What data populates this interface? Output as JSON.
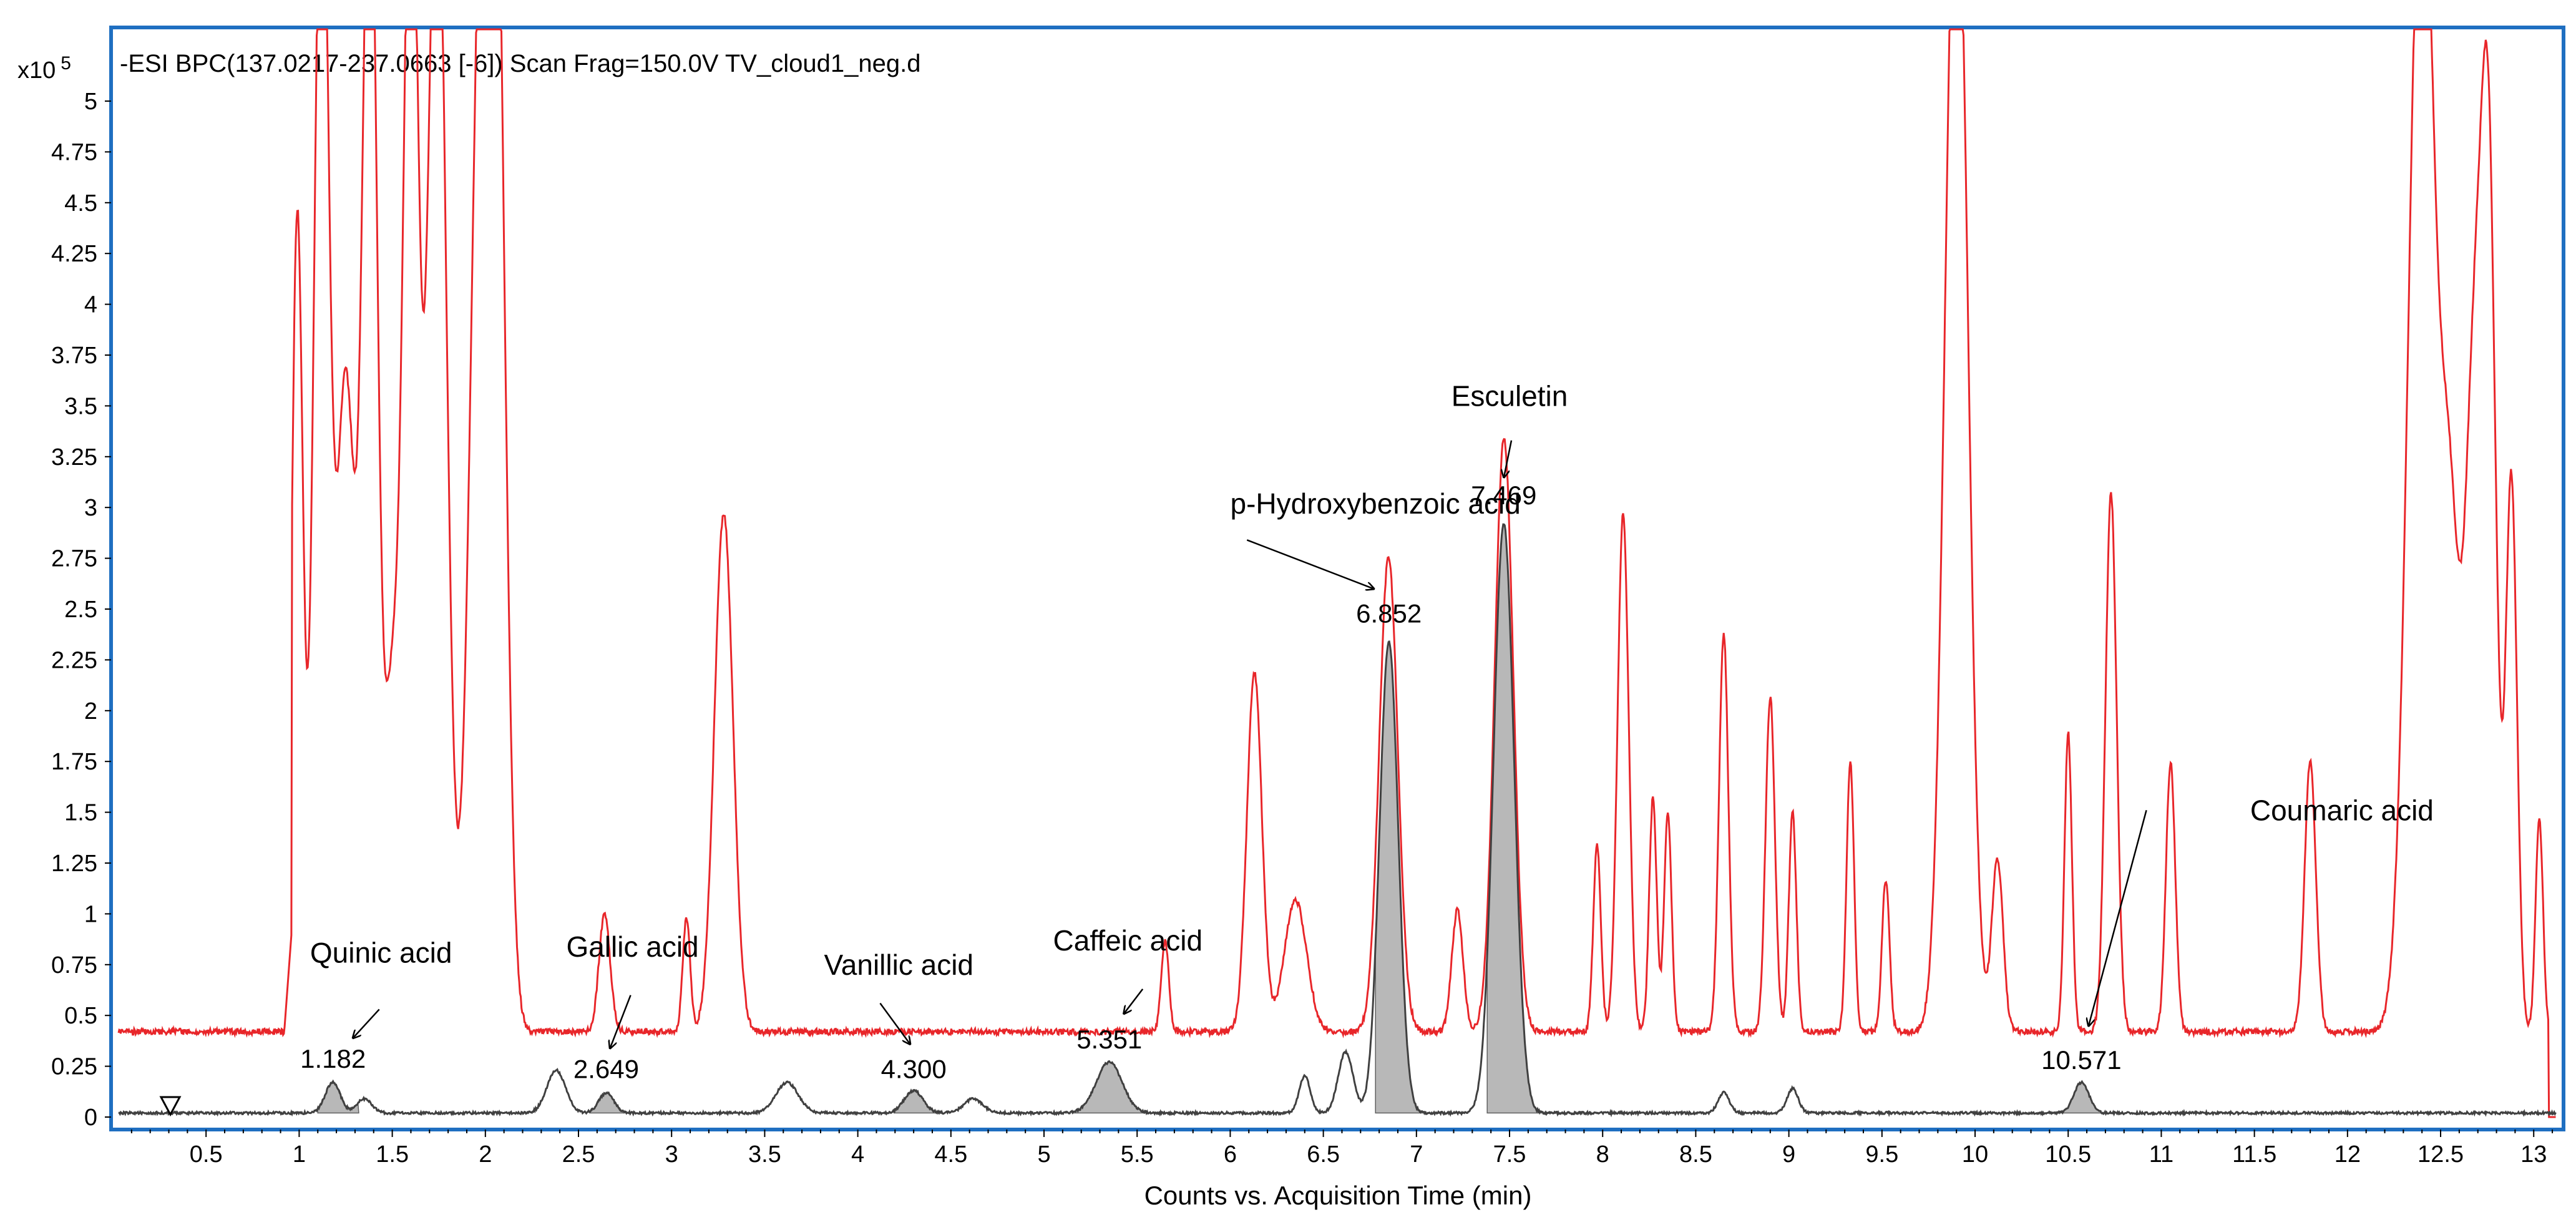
{
  "chart_data": {
    "type": "line",
    "title": "-ESI BPC(137.0217-237.0663 [-6]) Scan Frag=150.0V TV_cloud1_neg.d",
    "xlabel": "Counts vs. Acquisition Time (min)",
    "y_multiplier_label": "x10",
    "y_multiplier_exp": "5",
    "xlim": [
      0.0,
      13.15
    ],
    "ylim": [
      0.0,
      5.25
    ],
    "x_ticks": [
      "0.5",
      "1",
      "1.5",
      "2",
      "2.5",
      "3",
      "3.5",
      "4",
      "4.5",
      "5",
      "5.5",
      "6",
      "6.5",
      "7",
      "7.5",
      "8",
      "8.5",
      "9",
      "9.5",
      "10",
      "10.5",
      "11",
      "11.5",
      "12",
      "12.5",
      "13"
    ],
    "y_ticks": [
      "0",
      "0.25",
      "0.5",
      "0.75",
      "1",
      "1.25",
      "1.5",
      "1.75",
      "2",
      "2.25",
      "2.5",
      "2.75",
      "3",
      "3.25",
      "3.5",
      "3.75",
      "4",
      "4.25",
      "4.5",
      "4.75",
      "5"
    ],
    "series": [
      {
        "color": "#e8262a",
        "baseline": 0.42,
        "peaks": [
          {
            "rt": 0.99,
            "h": 4.02,
            "w": 0.03
          },
          {
            "rt": 1.12,
            "h": 6.0,
            "w": 0.04
          },
          {
            "rt": 1.25,
            "h": 3.2,
            "w": 0.05
          },
          {
            "rt": 1.38,
            "h": 6.0,
            "w": 0.04
          },
          {
            "rt": 1.5,
            "h": 1.6,
            "w": 0.04
          },
          {
            "rt": 1.6,
            "h": 6.0,
            "w": 0.04
          },
          {
            "rt": 1.74,
            "h": 6.0,
            "w": 0.05
          },
          {
            "rt": 1.98,
            "h": 5.12,
            "w": 0.06
          },
          {
            "rt": 2.06,
            "h": 4.4,
            "w": 0.05
          },
          {
            "rt": 2.64,
            "h": 0.58,
            "w": 0.03
          },
          {
            "rt": 3.08,
            "h": 0.56,
            "w": 0.02
          },
          {
            "rt": 3.28,
            "h": 2.55,
            "w": 0.05
          },
          {
            "rt": 5.65,
            "h": 0.45,
            "w": 0.02
          },
          {
            "rt": 6.13,
            "h": 1.77,
            "w": 0.04
          },
          {
            "rt": 6.35,
            "h": 0.65,
            "w": 0.06
          },
          {
            "rt": 6.85,
            "h": 2.33,
            "w": 0.05
          },
          {
            "rt": 7.22,
            "h": 0.6,
            "w": 0.03
          },
          {
            "rt": 7.47,
            "h": 2.92,
            "w": 0.05
          },
          {
            "rt": 7.97,
            "h": 0.92,
            "w": 0.02
          },
          {
            "rt": 8.11,
            "h": 2.55,
            "w": 0.03
          },
          {
            "rt": 8.27,
            "h": 1.15,
            "w": 0.02
          },
          {
            "rt": 8.35,
            "h": 1.08,
            "w": 0.02
          },
          {
            "rt": 8.65,
            "h": 1.96,
            "w": 0.025
          },
          {
            "rt": 8.9,
            "h": 1.65,
            "w": 0.025
          },
          {
            "rt": 9.02,
            "h": 1.08,
            "w": 0.02
          },
          {
            "rt": 9.33,
            "h": 1.33,
            "w": 0.02
          },
          {
            "rt": 9.52,
            "h": 0.75,
            "w": 0.02
          },
          {
            "rt": 9.9,
            "h": 6.0,
            "w": 0.06
          },
          {
            "rt": 10.12,
            "h": 0.85,
            "w": 0.03
          },
          {
            "rt": 10.5,
            "h": 1.47,
            "w": 0.02
          },
          {
            "rt": 10.73,
            "h": 2.65,
            "w": 0.03
          },
          {
            "rt": 11.05,
            "h": 1.33,
            "w": 0.025
          },
          {
            "rt": 11.8,
            "h": 1.33,
            "w": 0.03
          },
          {
            "rt": 12.4,
            "h": 6.0,
            "w": 0.07
          },
          {
            "rt": 12.55,
            "h": 2.2,
            "w": 0.05
          },
          {
            "rt": 12.68,
            "h": 3.15,
            "w": 0.05
          },
          {
            "rt": 12.76,
            "h": 3.77,
            "w": 0.04
          },
          {
            "rt": 12.88,
            "h": 2.72,
            "w": 0.03
          },
          {
            "rt": 13.03,
            "h": 1.05,
            "w": 0.02
          }
        ]
      },
      {
        "color": "#404040",
        "baseline": 0.02,
        "peaks": [
          {
            "rt": 1.18,
            "h": 0.15,
            "w": 0.04
          },
          {
            "rt": 1.35,
            "h": 0.07,
            "w": 0.04
          },
          {
            "rt": 2.38,
            "h": 0.21,
            "w": 0.05
          },
          {
            "rt": 2.65,
            "h": 0.1,
            "w": 0.04
          },
          {
            "rt": 3.62,
            "h": 0.15,
            "w": 0.06
          },
          {
            "rt": 4.3,
            "h": 0.11,
            "w": 0.05
          },
          {
            "rt": 4.62,
            "h": 0.07,
            "w": 0.05
          },
          {
            "rt": 5.35,
            "h": 0.25,
            "w": 0.07
          },
          {
            "rt": 6.4,
            "h": 0.18,
            "w": 0.03
          },
          {
            "rt": 6.62,
            "h": 0.3,
            "w": 0.04
          },
          {
            "rt": 6.852,
            "h": 2.32,
            "w": 0.05
          },
          {
            "rt": 7.469,
            "h": 2.9,
            "w": 0.055
          },
          {
            "rt": 8.65,
            "h": 0.1,
            "w": 0.03
          },
          {
            "rt": 9.02,
            "h": 0.12,
            "w": 0.03
          },
          {
            "rt": 10.571,
            "h": 0.15,
            "w": 0.04
          }
        ]
      }
    ],
    "filled_peaks": [
      {
        "rt": 1.182,
        "label": "1.182",
        "start": 1.1,
        "end": 1.32
      },
      {
        "rt": 2.649,
        "label": "2.649",
        "start": 2.56,
        "end": 2.75
      },
      {
        "rt": 4.3,
        "label": "4.300",
        "start": 4.2,
        "end": 4.45
      },
      {
        "rt": 5.351,
        "label": "5.351",
        "start": 5.15,
        "end": 5.6
      },
      {
        "rt": 6.852,
        "label": "6.852",
        "start": 6.78,
        "end": 7.05
      },
      {
        "rt": 7.469,
        "label": "7.469",
        "start": 7.38,
        "end": 7.95
      },
      {
        "rt": 10.571,
        "label": "10.571",
        "start": 10.45,
        "end": 10.72
      }
    ],
    "annotations": [
      {
        "text": "Quinic acid",
        "tx": 1.44,
        "ty": 0.76,
        "ax1": 1.43,
        "ay1": 0.53,
        "ax2": 1.29,
        "ay2": 0.39
      },
      {
        "text": "Gallic acid",
        "tx": 2.79,
        "ty": 0.79,
        "ax1": 2.78,
        "ay1": 0.6,
        "ax2": 2.67,
        "ay2": 0.34
      },
      {
        "text": "Vanillic acid",
        "tx": 4.22,
        "ty": 0.7,
        "ax1": 4.12,
        "ay1": 0.56,
        "ax2": 4.28,
        "ay2": 0.36
      },
      {
        "text": "Caffeic acid",
        "tx": 5.45,
        "ty": 0.82,
        "ax1": 5.53,
        "ay1": 0.63,
        "ax2": 5.43,
        "ay2": 0.51
      },
      {
        "text": "p-Hydroxybenzoic acid",
        "tx": 6.78,
        "ty": 2.97,
        "ax1": 6.09,
        "ay1": 2.84,
        "ax2": 6.77,
        "ay2": 2.6
      },
      {
        "text": "Esculetin",
        "tx": 7.5,
        "ty": 3.5,
        "ax1": 7.51,
        "ay1": 3.33,
        "ax2": 7.47,
        "ay2": 3.15
      },
      {
        "text": "Coumaric acid",
        "tx": 11.97,
        "ty": 1.46,
        "ax1": 10.92,
        "ay1": 1.51,
        "ax2": 10.61,
        "ay2": 0.45
      }
    ]
  }
}
